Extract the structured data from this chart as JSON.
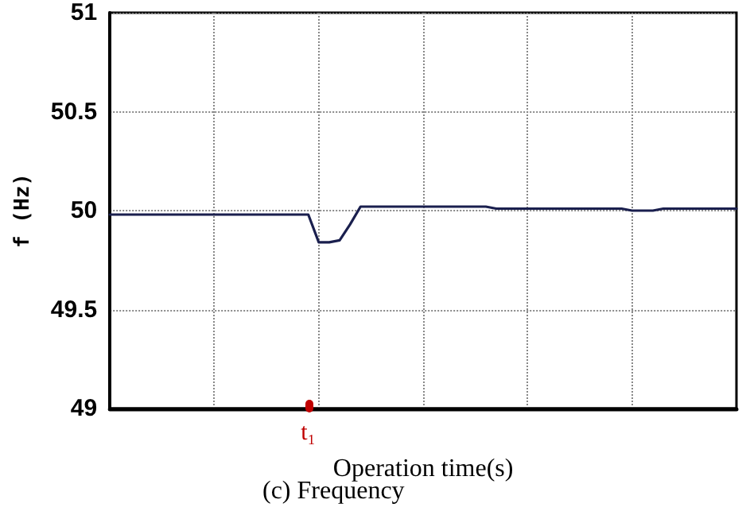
{
  "chart_data": {
    "type": "line",
    "title": "(c) Frequency",
    "xlabel": "Operation time(s)",
    "ylabel": "f (Hz)",
    "categories": [
      null,
      null,
      null,
      null,
      null,
      null,
      null,
      null,
      null,
      null,
      null,
      null,
      null,
      null,
      null,
      null,
      null,
      null,
      null,
      "t₁",
      null,
      null,
      null,
      null,
      null,
      null,
      null,
      null,
      null,
      null,
      null,
      null,
      null,
      null,
      null,
      null,
      null,
      null,
      null,
      null,
      null,
      null,
      null,
      null,
      null,
      null,
      null,
      null,
      null,
      null,
      null,
      null,
      null,
      null,
      null,
      null,
      null,
      null,
      null,
      null,
      null
    ],
    "series": [
      {
        "color": "#1a1f4e",
        "values": [
          49.98,
          49.98,
          49.98,
          49.98,
          49.98,
          49.98,
          49.98,
          49.98,
          49.98,
          49.98,
          49.98,
          49.98,
          49.98,
          49.98,
          49.98,
          49.98,
          49.98,
          49.98,
          49.98,
          49.98,
          49.84,
          49.84,
          49.85,
          49.93,
          50.02,
          50.02,
          50.02,
          50.02,
          50.02,
          50.02,
          50.02,
          50.02,
          50.02,
          50.02,
          50.02,
          50.02,
          50.02,
          50.01,
          50.01,
          50.01,
          50.01,
          50.01,
          50.01,
          50.01,
          50.01,
          50.01,
          50.01,
          50.01,
          50.01,
          50.01,
          50.0,
          50.0,
          50.0,
          50.01,
          50.01,
          50.01,
          50.01,
          50.01,
          50.01,
          50.01,
          50.01
        ]
      }
    ],
    "ylim": [
      49,
      51
    ],
    "yticks": [
      49,
      49.5,
      50,
      50.5,
      51
    ],
    "grid": true,
    "marker": "none",
    "line_style": "solid"
  }
}
